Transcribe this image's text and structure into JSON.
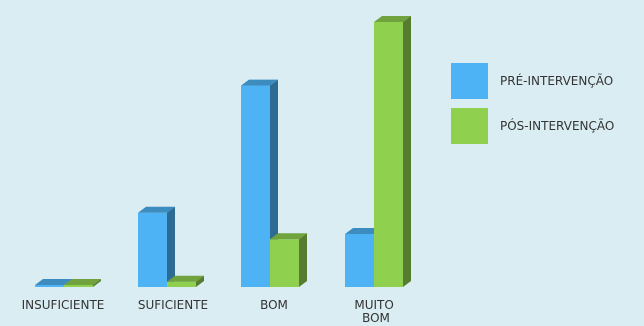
{
  "chart_data": {
    "type": "bar",
    "style": "3d-clustered",
    "categories": [
      "INSUFICIENTE",
      "SUFICIENTE",
      "BOM",
      [
        "MUITO",
        "BOM"
      ]
    ],
    "series": [
      {
        "name": "PRÉ-INTERVENÇÃO",
        "color": "#4db3f5",
        "values": [
          0,
          7,
          19,
          5
        ]
      },
      {
        "name": "PÓS-INTERVENÇÃO",
        "color": "#8fd14f",
        "values": [
          0,
          0.5,
          4.5,
          25
        ]
      }
    ],
    "title": "",
    "xlabel": "",
    "ylabel": "",
    "ylim": [
      0,
      25
    ],
    "grid": false,
    "legend": "right"
  }
}
